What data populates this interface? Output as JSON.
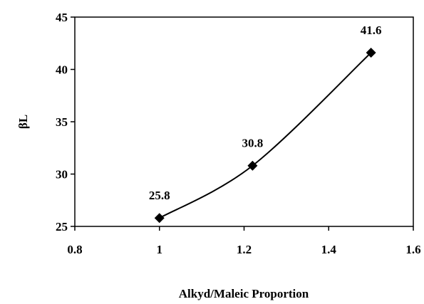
{
  "chart_data": {
    "type": "scatter",
    "title": "",
    "xlabel": "Alkyd/Maleic Proportion",
    "ylabel": "βL",
    "xlim": [
      0.8,
      1.6
    ],
    "ylim": [
      25,
      45
    ],
    "xticks": [
      "0.8",
      "1",
      "1.2",
      "1.4",
      "1.6"
    ],
    "yticks": [
      "25",
      "30",
      "35",
      "40",
      "45"
    ],
    "grid": false,
    "marker": "diamond",
    "line": "smooth",
    "color": "#000000",
    "points": [
      {
        "x": 1.0,
        "y": 25.8,
        "label": "25.8"
      },
      {
        "x": 1.22,
        "y": 30.8,
        "label": "30.8"
      },
      {
        "x": 1.5,
        "y": 41.6,
        "label": "41.6"
      }
    ]
  }
}
